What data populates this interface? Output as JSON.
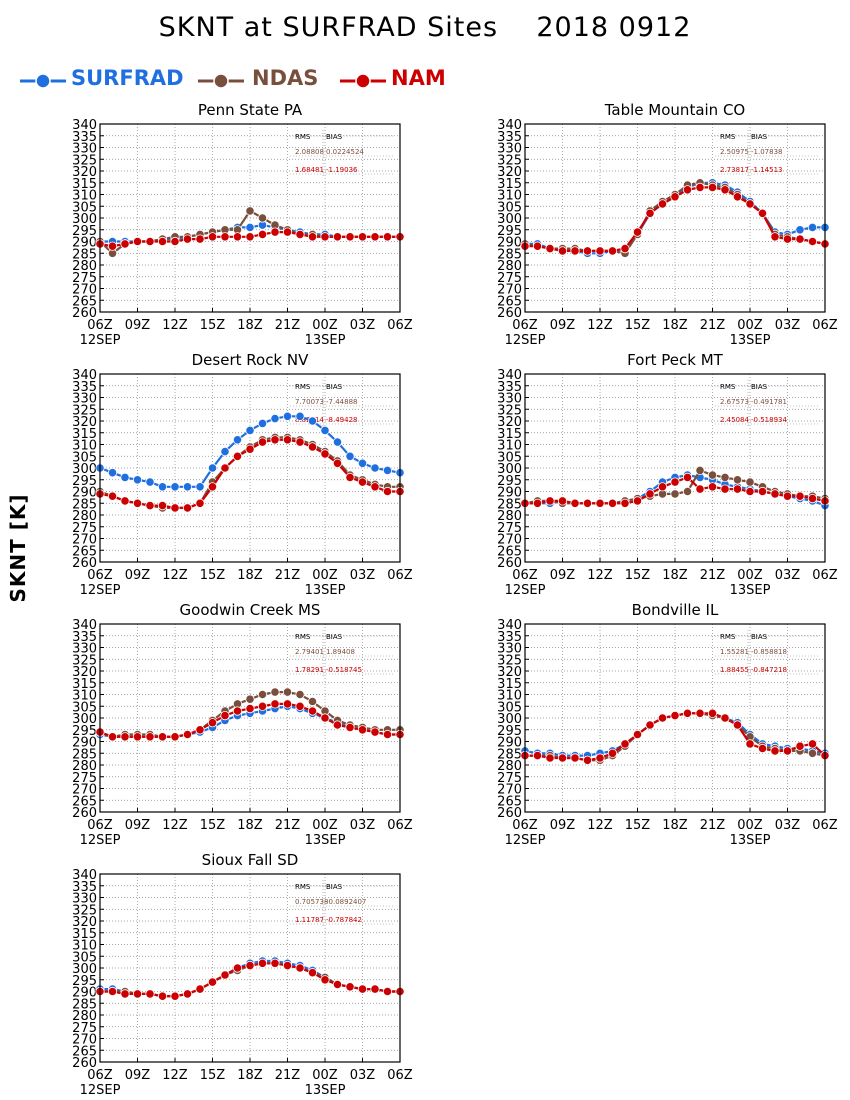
{
  "title": "SKNT at SURFRAD Sites    2018 0912",
  "ylabel": "SKNT [K]",
  "legend": [
    {
      "name": "SURFRAD",
      "color": "#1f6fe0"
    },
    {
      "name": "NDAS",
      "color": "#7a4e3c"
    },
    {
      "name": "NAM",
      "color": "#cc0000"
    }
  ],
  "x_ticks": [
    "06Z",
    "09Z",
    "12Z",
    "15Z",
    "18Z",
    "21Z",
    "00Z",
    "03Z",
    "06Z"
  ],
  "x_date_labels": [
    {
      "label": "12SEP",
      "at": "06Z"
    },
    {
      "label": "13SEP",
      "at": "00Z"
    }
  ],
  "chart_data": [
    {
      "type": "line",
      "title": "Penn State PA",
      "ylim": [
        260,
        340
      ],
      "ytick_step": 5,
      "grid": true,
      "stats": {
        "header": [
          "RMS",
          "BIAS"
        ],
        "NDAS": [
          "2.08808",
          "0.0224524"
        ],
        "NAM": [
          "1.68481",
          "-1.19036"
        ]
      },
      "series": [
        {
          "name": "SURFRAD",
          "values": [
            290,
            290,
            290,
            290,
            290,
            291,
            291,
            292,
            293,
            294,
            295,
            296,
            296,
            297,
            296,
            295,
            294,
            293,
            293,
            292,
            292,
            292,
            292,
            292,
            292
          ]
        },
        {
          "name": "NDAS",
          "values": [
            290,
            285,
            289,
            290,
            290,
            291,
            292,
            292,
            293,
            294,
            295,
            295,
            303,
            300,
            297,
            295,
            293,
            293,
            292,
            292,
            292,
            292,
            292,
            292,
            292
          ]
        },
        {
          "name": "NAM",
          "values": [
            289,
            288,
            289,
            290,
            290,
            290,
            290,
            291,
            291,
            292,
            292,
            292,
            292,
            293,
            294,
            294,
            293,
            292,
            292,
            292,
            292,
            292,
            292,
            292,
            292
          ]
        }
      ]
    },
    {
      "type": "line",
      "title": "Table Mountain CO",
      "ylim": [
        260,
        340
      ],
      "ytick_step": 5,
      "grid": true,
      "stats": {
        "header": [
          "RMS",
          "BIAS"
        ],
        "NDAS": [
          "2.50975",
          "-1.07838"
        ],
        "NAM": [
          "2.73817",
          "-1.14513"
        ]
      },
      "series": [
        {
          "name": "SURFRAD",
          "values": [
            289,
            289,
            287,
            287,
            286,
            285,
            285,
            286,
            287,
            293,
            302,
            306,
            309,
            313,
            315,
            315,
            314,
            311,
            307,
            302,
            294,
            293,
            295,
            296,
            296
          ]
        },
        {
          "name": "NDAS",
          "values": [
            289,
            288,
            287,
            287,
            287,
            286,
            286,
            286,
            285,
            293,
            303,
            307,
            310,
            314,
            315,
            314,
            313,
            310,
            306,
            302,
            293,
            292,
            291,
            290,
            289
          ]
        },
        {
          "name": "NAM",
          "values": [
            288,
            288,
            287,
            286,
            286,
            286,
            286,
            286,
            287,
            294,
            302,
            306,
            309,
            312,
            313,
            313,
            312,
            309,
            306,
            302,
            292,
            291,
            291,
            290,
            289
          ]
        }
      ]
    },
    {
      "type": "line",
      "title": "Desert Rock NV",
      "ylim": [
        260,
        340
      ],
      "ytick_step": 5,
      "grid": true,
      "stats": {
        "header": [
          "RMS",
          "BIAS"
        ],
        "NDAS": [
          "7.70073",
          "-7.44888"
        ],
        "NAM": [
          "8.82914",
          "-8.49428"
        ]
      },
      "series": [
        {
          "name": "SURFRAD",
          "values": [
            300,
            298,
            296,
            295,
            294,
            292,
            292,
            292,
            292,
            300,
            307,
            312,
            316,
            319,
            321,
            322,
            322,
            320,
            316,
            311,
            305,
            302,
            300,
            299,
            298
          ]
        },
        {
          "name": "NDAS",
          "values": [
            290,
            288,
            286,
            285,
            284,
            283,
            283,
            283,
            285,
            294,
            300,
            305,
            309,
            312,
            313,
            313,
            312,
            310,
            307,
            303,
            297,
            295,
            293,
            292,
            292
          ]
        },
        {
          "name": "NAM",
          "values": [
            289,
            288,
            286,
            285,
            284,
            284,
            283,
            283,
            285,
            292,
            300,
            305,
            308,
            311,
            312,
            312,
            311,
            309,
            306,
            302,
            296,
            294,
            292,
            290,
            290
          ]
        }
      ]
    },
    {
      "type": "line",
      "title": "Fort Peck MT",
      "ylim": [
        260,
        340
      ],
      "ytick_step": 5,
      "grid": true,
      "stats": {
        "header": [
          "RMS",
          "BIAS"
        ],
        "NDAS": [
          "2.67573",
          "-0.491781"
        ],
        "NAM": [
          "2.45084",
          "-0.518934"
        ]
      },
      "series": [
        {
          "name": "SURFRAD",
          "values": [
            285,
            285,
            285,
            286,
            285,
            285,
            285,
            285,
            286,
            287,
            290,
            294,
            296,
            297,
            296,
            295,
            293,
            292,
            291,
            290,
            289,
            288,
            287,
            286,
            284
          ]
        },
        {
          "name": "NDAS",
          "values": [
            285,
            286,
            286,
            285,
            285,
            285,
            285,
            285,
            286,
            287,
            288,
            289,
            289,
            290,
            299,
            297,
            296,
            295,
            294,
            292,
            290,
            289,
            288,
            288,
            287
          ]
        },
        {
          "name": "NAM",
          "values": [
            285,
            285,
            286,
            286,
            285,
            285,
            285,
            285,
            285,
            286,
            289,
            292,
            294,
            296,
            291,
            292,
            291,
            291,
            290,
            290,
            289,
            288,
            288,
            287,
            286
          ]
        }
      ]
    },
    {
      "type": "line",
      "title": "Goodwin Creek MS",
      "ylim": [
        260,
        340
      ],
      "ytick_step": 5,
      "grid": true,
      "stats": {
        "header": [
          "RMS",
          "BIAS"
        ],
        "NDAS": [
          "2.79401",
          "1.89408"
        ],
        "NAM": [
          "1.78291",
          "-0.518745"
        ]
      },
      "series": [
        {
          "name": "SURFRAD",
          "values": [
            293,
            292,
            292,
            292,
            292,
            292,
            292,
            293,
            294,
            296,
            299,
            301,
            302,
            303,
            304,
            305,
            304,
            302,
            300,
            298,
            296,
            295,
            294,
            293,
            293
          ]
        },
        {
          "name": "NDAS",
          "values": [
            294,
            292,
            293,
            293,
            293,
            292,
            292,
            293,
            295,
            299,
            303,
            306,
            308,
            310,
            311,
            311,
            310,
            307,
            303,
            299,
            297,
            296,
            295,
            295,
            295
          ]
        },
        {
          "name": "NAM",
          "values": [
            294,
            292,
            292,
            292,
            292,
            292,
            292,
            293,
            295,
            298,
            301,
            303,
            304,
            305,
            306,
            306,
            305,
            303,
            300,
            297,
            296,
            295,
            294,
            293,
            293
          ]
        }
      ]
    },
    {
      "type": "line",
      "title": "Bondville IL",
      "ylim": [
        260,
        340
      ],
      "ytick_step": 5,
      "grid": true,
      "stats": {
        "header": [
          "RMS",
          "BIAS"
        ],
        "NDAS": [
          "1.55281",
          "-0.858818"
        ],
        "NAM": [
          "1.88455",
          "-0.847218"
        ]
      },
      "series": [
        {
          "name": "SURFRAD",
          "values": [
            286,
            285,
            285,
            284,
            284,
            284,
            285,
            286,
            289,
            293,
            297,
            300,
            301,
            302,
            302,
            301,
            300,
            298,
            293,
            289,
            288,
            287,
            287,
            286,
            285
          ]
        },
        {
          "name": "NDAS",
          "values": [
            284,
            284,
            284,
            283,
            283,
            282,
            282,
            284,
            288,
            293,
            297,
            300,
            301,
            302,
            302,
            301,
            300,
            297,
            292,
            288,
            287,
            286,
            286,
            285,
            284
          ]
        },
        {
          "name": "NAM",
          "values": [
            284,
            284,
            283,
            283,
            283,
            282,
            283,
            285,
            289,
            293,
            297,
            300,
            301,
            302,
            302,
            302,
            300,
            297,
            289,
            287,
            286,
            286,
            288,
            289,
            284
          ]
        }
      ]
    },
    {
      "type": "line",
      "title": "Sioux Fall SD",
      "ylim": [
        260,
        340
      ],
      "ytick_step": 5,
      "grid": true,
      "stats": {
        "header": [
          "RMS",
          "BIAS"
        ],
        "NDAS": [
          "0.705738",
          "-0.0892407"
        ],
        "NAM": [
          "1.11787",
          "-0.787842"
        ]
      },
      "series": [
        {
          "name": "SURFRAD",
          "values": [
            291,
            291,
            290,
            289,
            289,
            288,
            288,
            289,
            291,
            294,
            297,
            300,
            302,
            303,
            303,
            302,
            301,
            299,
            296,
            293,
            292,
            291,
            291,
            290,
            290
          ]
        },
        {
          "name": "NDAS",
          "values": [
            290,
            290,
            290,
            289,
            289,
            288,
            288,
            289,
            291,
            294,
            297,
            299,
            301,
            302,
            302,
            301,
            300,
            298,
            296,
            293,
            292,
            291,
            291,
            290,
            290
          ]
        },
        {
          "name": "NAM",
          "values": [
            290,
            290,
            289,
            289,
            289,
            288,
            288,
            289,
            291,
            294,
            297,
            300,
            301,
            302,
            302,
            301,
            300,
            298,
            295,
            293,
            292,
            291,
            291,
            290,
            290
          ]
        }
      ]
    }
  ]
}
